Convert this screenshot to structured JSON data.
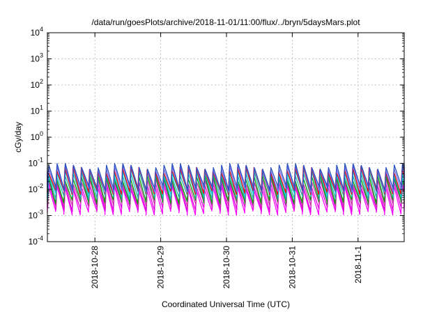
{
  "chart_data": {
    "type": "line",
    "title": "/data/run/goesPlots/archive/2018-11-01/11:00/flux/../bryn/5daysMars.plot",
    "xlabel": "Coordinated Universal Time (UTC)",
    "ylabel": "cGy/day",
    "y_scale": "log",
    "ylim": [
      0.0001,
      10000
    ],
    "xlim": [
      "2018-10-27 06:40",
      "2018-11-01 16:50"
    ],
    "x_tick_labels": [
      "2018-10-28",
      "2018-10-29",
      "2018-10-30",
      "2018-10-31",
      "2018-11-1"
    ],
    "y_tick_labels": [
      {
        "base": "10",
        "exp": "-4"
      },
      {
        "base": "10",
        "exp": "-3"
      },
      {
        "base": "10",
        "exp": "-2"
      },
      {
        "base": "10",
        "exp": "-1"
      },
      {
        "base": "10",
        "exp": "0"
      },
      {
        "base": "10",
        "exp": "1"
      },
      {
        "base": "10",
        "exp": "2"
      },
      {
        "base": "10",
        "exp": "3"
      },
      {
        "base": "10",
        "exp": "4"
      }
    ],
    "grid": true,
    "legend": "none",
    "pattern": {
      "period_hours": 3,
      "note_peak": "sawtooth rises sharply then decays every ~3 hours"
    },
    "series": [
      {
        "color": "#ff00ff",
        "peak": 0.012,
        "trough": 0.0013
      },
      {
        "color": "#dd00dd",
        "peak": 0.015,
        "trough": 0.0018
      },
      {
        "color": "#cc33aa",
        "peak": 0.02,
        "trough": 0.0025
      },
      {
        "color": "#00a000",
        "peak": 0.03,
        "trough": 0.0035
      },
      {
        "color": "#20b2aa",
        "peak": 0.04,
        "trough": 0.005
      },
      {
        "color": "#00ced1",
        "peak": 0.05,
        "trough": 0.0065
      },
      {
        "color": "#ff0000",
        "peak": 0.06,
        "trough": 0.008
      },
      {
        "color": "#7b68ee",
        "peak": 0.07,
        "trough": 0.0095
      },
      {
        "color": "#2a52be",
        "peak": 0.08,
        "trough": 0.011
      }
    ]
  }
}
